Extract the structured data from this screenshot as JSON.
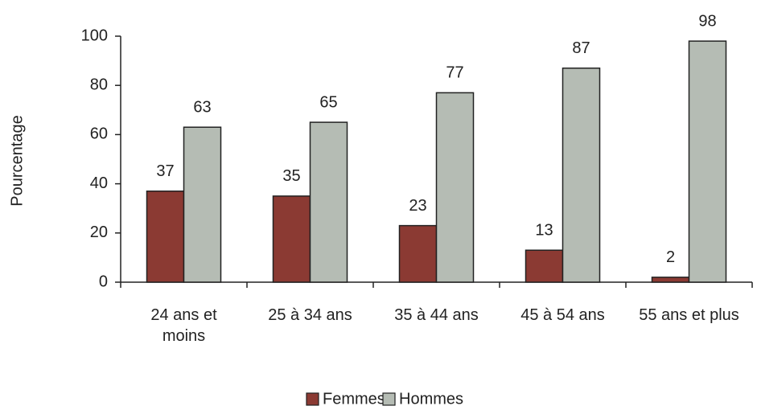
{
  "chart_data": {
    "type": "bar",
    "categories": [
      "24 ans et moins",
      "25 à 34 ans",
      "35 à 44 ans",
      "45 à 54 ans",
      "55 ans et plus"
    ],
    "series": [
      {
        "name": "Femmes",
        "color": "#8b3a33",
        "values": [
          37,
          35,
          23,
          13,
          2
        ]
      },
      {
        "name": "Hommes",
        "color": "#b5bcb4",
        "values": [
          63,
          65,
          77,
          87,
          98
        ]
      }
    ],
    "y_label": "Pourcentage",
    "ylim": [
      0,
      100
    ],
    "yticks": [
      0,
      20,
      40,
      60,
      80,
      100
    ],
    "legend": "bottom"
  }
}
